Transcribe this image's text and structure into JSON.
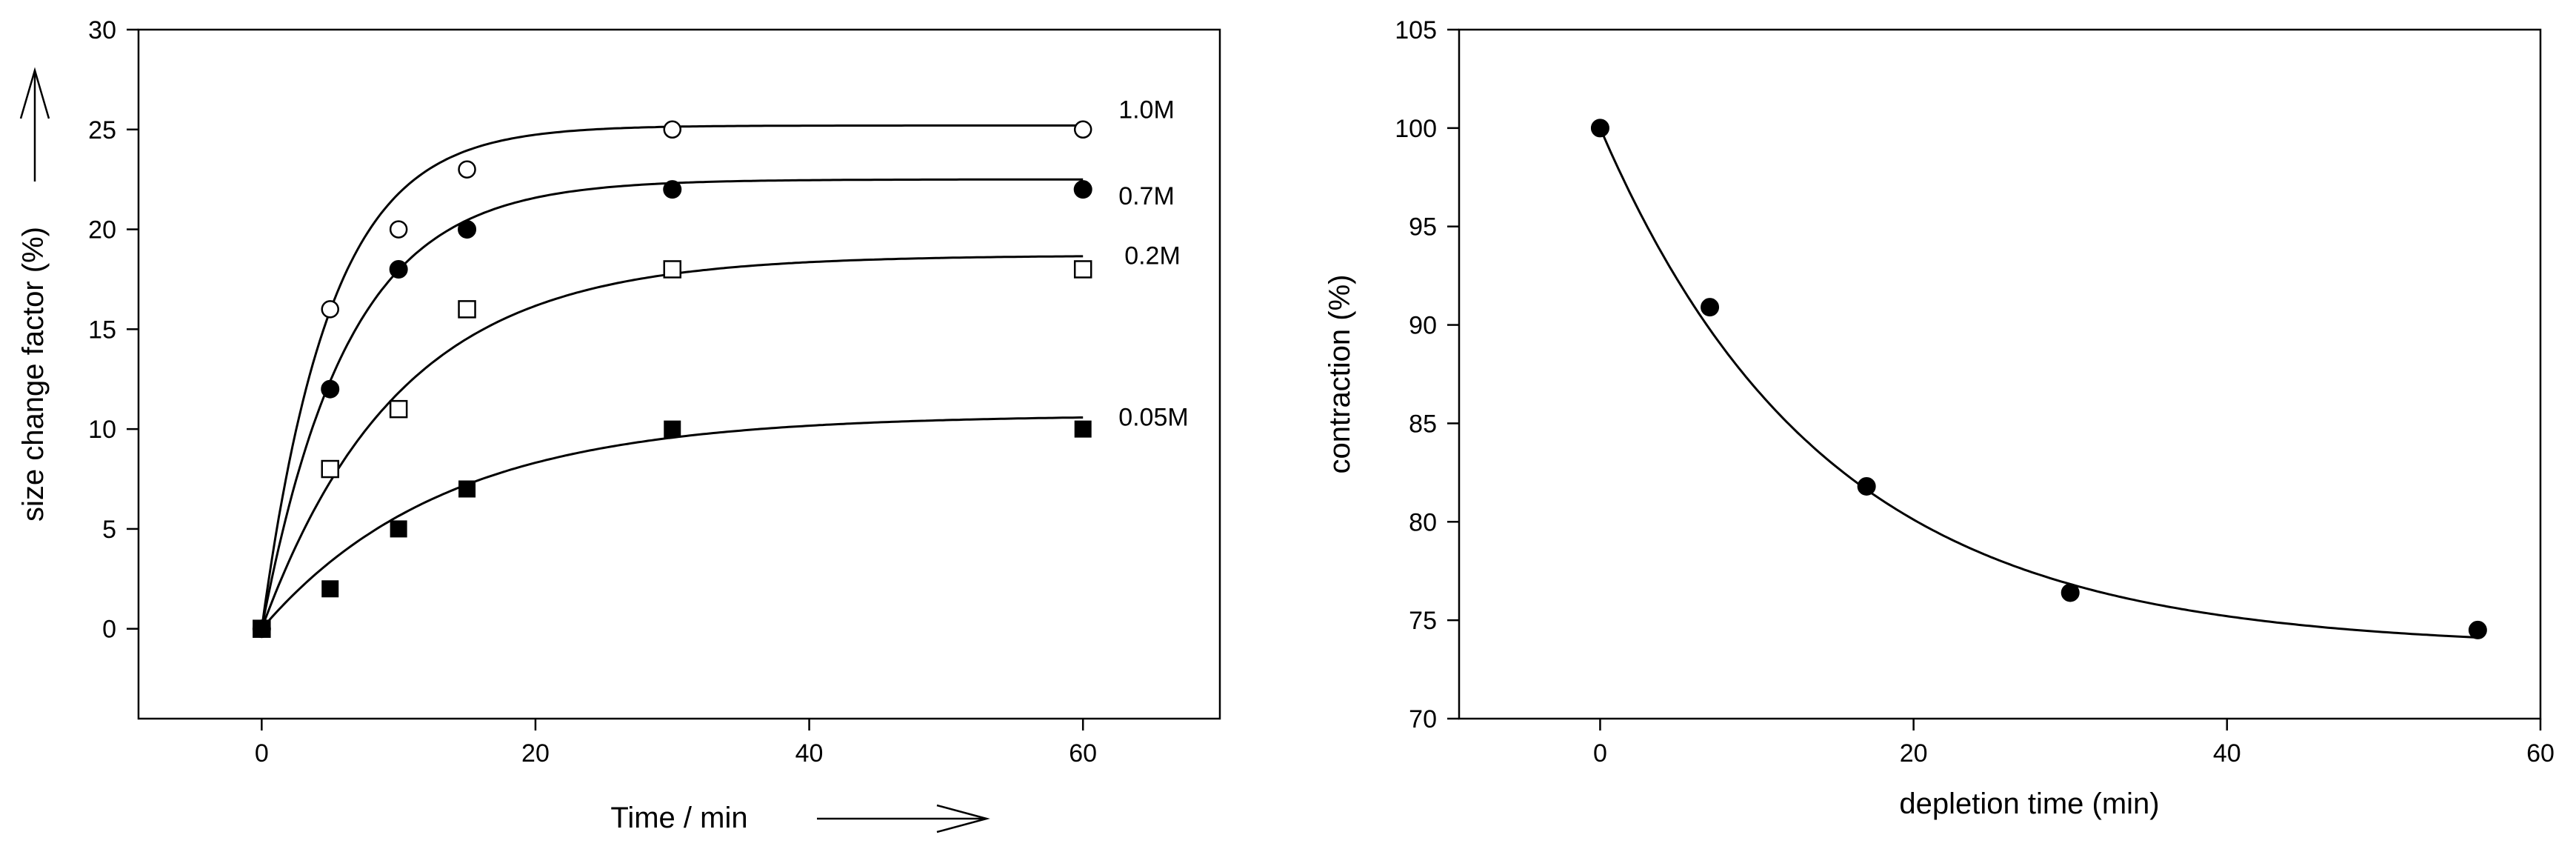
{
  "chart_data": [
    {
      "type": "scatter",
      "xlabel": "Time / min",
      "ylabel": "size change factor (%)",
      "xlim": [
        -9,
        70
      ],
      "ylim": [
        -4.5,
        30
      ],
      "xticks": [
        0,
        20,
        40,
        60
      ],
      "yticks": [
        0,
        5,
        10,
        15,
        20,
        25,
        30
      ],
      "grid": false,
      "series": [
        {
          "name": "1.0M",
          "marker": "open-circle",
          "x": [
            0,
            5,
            10,
            15,
            30,
            60
          ],
          "y": [
            0,
            16,
            20,
            23,
            25,
            25
          ],
          "fit": {
            "plateau": 25.2,
            "rate": 0.2
          }
        },
        {
          "name": "0.7M",
          "marker": "filled-circle",
          "x": [
            0,
            5,
            10,
            15,
            30,
            60
          ],
          "y": [
            0,
            12,
            18,
            20,
            22,
            22
          ],
          "fit": {
            "plateau": 22.5,
            "rate": 0.16
          }
        },
        {
          "name": "0.2M",
          "marker": "open-square",
          "x": [
            0,
            5,
            10,
            15,
            30,
            60
          ],
          "y": [
            0,
            8,
            11,
            16,
            18,
            18
          ],
          "fit": {
            "plateau": 18.7,
            "rate": 0.1
          }
        },
        {
          "name": "0.05M",
          "marker": "filled-square",
          "x": [
            0,
            5,
            10,
            15,
            30,
            60
          ],
          "y": [
            0,
            2,
            5,
            7,
            10,
            10
          ],
          "fit": {
            "plateau": 10.7,
            "rate": 0.075
          }
        }
      ]
    },
    {
      "type": "scatter",
      "xlabel": "depletion time   (min)",
      "ylabel": "contraction  (%)",
      "xlim": [
        -9,
        60
      ],
      "ylim": [
        70,
        105
      ],
      "xticks": [
        0,
        20,
        40,
        60
      ],
      "yticks": [
        70,
        75,
        80,
        85,
        90,
        95,
        100,
        105
      ],
      "grid": false,
      "series": [
        {
          "marker": "filled-circle",
          "x": [
            0,
            7,
            17,
            30,
            56
          ],
          "y": [
            100,
            90.9,
            81.8,
            76.4,
            74.5
          ],
          "fit": {
            "asymptote": 73.6,
            "amplitude": 26.4,
            "rate": 0.07
          }
        }
      ]
    }
  ]
}
